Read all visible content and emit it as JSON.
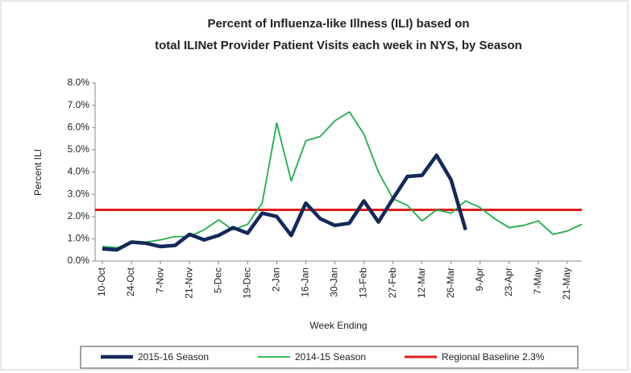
{
  "chart_data": {
    "type": "line",
    "title": [
      "Percent of Influenza-like Illness (ILI) based on",
      "total ILINet Provider Patient Visits each week in NYS, by Season"
    ],
    "x_label": "Week Ending",
    "y_label": "Percent ILI",
    "categories": [
      "10-Oct",
      null,
      "24-Oct",
      null,
      "7-Nov",
      null,
      "21-Nov",
      null,
      "5-Dec",
      null,
      "19-Dec",
      null,
      "2-Jan",
      null,
      "16-Jan",
      null,
      "30-Jan",
      null,
      "13-Feb",
      null,
      "27-Feb",
      null,
      "12-Mar",
      null,
      "26-Mar",
      null,
      "9-Apr",
      null,
      "23-Apr",
      null,
      "7-May",
      null,
      "21-May",
      null
    ],
    "series": [
      {
        "name": "2015-16 Season",
        "color": "#14285a",
        "values": [
          0.55,
          0.5,
          0.85,
          0.8,
          0.65,
          0.7,
          1.2,
          0.95,
          1.15,
          1.5,
          1.25,
          2.15,
          2.0,
          1.15,
          2.6,
          1.9,
          1.6,
          1.7,
          2.7,
          1.75,
          2.8,
          3.8,
          3.85,
          4.75,
          3.65,
          1.4,
          null,
          null,
          null,
          null,
          null,
          null,
          null,
          null
        ]
      },
      {
        "name": "2014-15 Season",
        "color": "#1fae4a",
        "values": [
          0.65,
          0.6,
          0.8,
          0.85,
          0.95,
          1.1,
          1.1,
          1.4,
          1.85,
          1.4,
          1.65,
          2.6,
          6.2,
          3.6,
          5.4,
          5.6,
          6.3,
          6.7,
          5.7,
          4.0,
          2.8,
          2.5,
          1.8,
          2.3,
          2.15,
          2.7,
          2.4,
          1.9,
          1.5,
          1.6,
          1.8,
          1.2,
          1.35,
          1.65
        ]
      }
    ],
    "baseline": {
      "name": "Regional Baseline 2.3%",
      "value": 2.3,
      "color": "#e01b1b"
    },
    "ylim": [
      0,
      8
    ],
    "yticks": [
      {
        "value": 0,
        "label": "0.0%"
      },
      {
        "value": 1,
        "label": "1.0%"
      },
      {
        "value": 2,
        "label": "2.0%"
      },
      {
        "value": 3,
        "label": "3.0%"
      },
      {
        "value": 4,
        "label": "4.0%"
      },
      {
        "value": 5,
        "label": "5.0%"
      },
      {
        "value": 6,
        "label": "6.0%"
      },
      {
        "value": 7,
        "label": "7.0%"
      },
      {
        "value": 8,
        "label": "8.0%"
      }
    ]
  }
}
